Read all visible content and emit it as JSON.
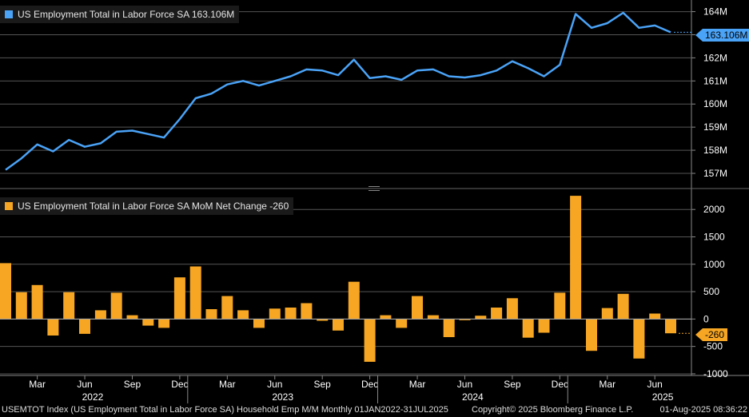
{
  "legend_top": {
    "label": "US Employment Total in Labor Force SA 163.106M",
    "color": "#4aa3f7"
  },
  "legend_bottom": {
    "label": "US Employment Total in Labor Force SA MoM Net Change -260",
    "color": "#f6a623"
  },
  "last_values": {
    "top": "163.106M",
    "bottom": "-260"
  },
  "footer": {
    "left": "USEMTOT Index (US Employment Total in Labor Force SA) Household Emp M/M  Monthly 01JAN2022-31JUL2025",
    "mid": "Copyright© 2025 Bloomberg Finance L.P.",
    "right": "01-Aug-2025 08:36:22"
  },
  "chart_data": [
    {
      "type": "line",
      "title": "US Employment Total in Labor Force SA 163.106M",
      "x": [
        "2022-01",
        "2022-02",
        "2022-03",
        "2022-04",
        "2022-05",
        "2022-06",
        "2022-07",
        "2022-08",
        "2022-09",
        "2022-10",
        "2022-11",
        "2022-12",
        "2023-01",
        "2023-02",
        "2023-03",
        "2023-04",
        "2023-05",
        "2023-06",
        "2023-07",
        "2023-08",
        "2023-09",
        "2023-10",
        "2023-11",
        "2023-12",
        "2024-01",
        "2024-02",
        "2024-03",
        "2024-04",
        "2024-05",
        "2024-06",
        "2024-07",
        "2024-08",
        "2024-09",
        "2024-10",
        "2024-11",
        "2024-12",
        "2025-01",
        "2025-02",
        "2025-03",
        "2025-04",
        "2025-05",
        "2025-06",
        "2025-07"
      ],
      "series": [
        {
          "name": "US Employment Total in Labor Force SA",
          "color": "#4aa3f7",
          "values": [
            157.15,
            157.65,
            158.25,
            157.95,
            158.45,
            158.15,
            158.3,
            158.8,
            158.85,
            158.7,
            158.55,
            159.35,
            160.25,
            160.45,
            160.85,
            161.0,
            160.8,
            161.0,
            161.2,
            161.5,
            161.45,
            161.25,
            161.92,
            161.12,
            161.2,
            161.05,
            161.45,
            161.5,
            161.2,
            161.15,
            161.25,
            161.45,
            161.85,
            161.55,
            161.2,
            161.7,
            163.9,
            163.3,
            163.5,
            163.95,
            163.3,
            163.4,
            163.106
          ]
        }
      ],
      "y_ticks": [
        "157M",
        "158M",
        "159M",
        "160M",
        "161M",
        "162M",
        "163M",
        "164M"
      ],
      "ylim": [
        156.55,
        164.4
      ]
    },
    {
      "type": "bar",
      "title": "US Employment Total in Labor Force SA MoM Net Change -260",
      "x": [
        "2022-01",
        "2022-02",
        "2022-03",
        "2022-04",
        "2022-05",
        "2022-06",
        "2022-07",
        "2022-08",
        "2022-09",
        "2022-10",
        "2022-11",
        "2022-12",
        "2023-01",
        "2023-02",
        "2023-03",
        "2023-04",
        "2023-05",
        "2023-06",
        "2023-07",
        "2023-08",
        "2023-09",
        "2023-10",
        "2023-11",
        "2023-12",
        "2024-01",
        "2024-02",
        "2024-03",
        "2024-04",
        "2024-05",
        "2024-06",
        "2024-07",
        "2024-08",
        "2024-09",
        "2024-10",
        "2024-11",
        "2024-12",
        "2025-01",
        "2025-02",
        "2025-03",
        "2025-04",
        "2025-05",
        "2025-06",
        "2025-07"
      ],
      "series": [
        {
          "name": "US Employment Total in Labor Force SA MoM Net Change",
          "color": "#f6a623",
          "values": [
            1020,
            490,
            620,
            -300,
            490,
            -270,
            160,
            480,
            70,
            -120,
            -160,
            760,
            960,
            180,
            420,
            160,
            -160,
            190,
            210,
            290,
            -30,
            -210,
            680,
            -780,
            70,
            -160,
            420,
            70,
            -330,
            -20,
            60,
            210,
            380,
            -340,
            -250,
            480,
            2250,
            -580,
            200,
            460,
            -720,
            100,
            -260
          ]
        }
      ],
      "y_ticks": [
        "-1000",
        "-500",
        "0",
        "500",
        "1000",
        "1500",
        "2000"
      ],
      "ylim": [
        -1030,
        2280
      ]
    }
  ],
  "x_axis": {
    "month_ticks": [
      "Mar",
      "Jun",
      "Sep",
      "Dec",
      "Mar",
      "Jun",
      "Sep",
      "Dec",
      "Mar",
      "Jun",
      "Sep",
      "Dec",
      "Mar",
      "Jun"
    ],
    "years": [
      "2022",
      "2023",
      "2024",
      "2025"
    ]
  }
}
